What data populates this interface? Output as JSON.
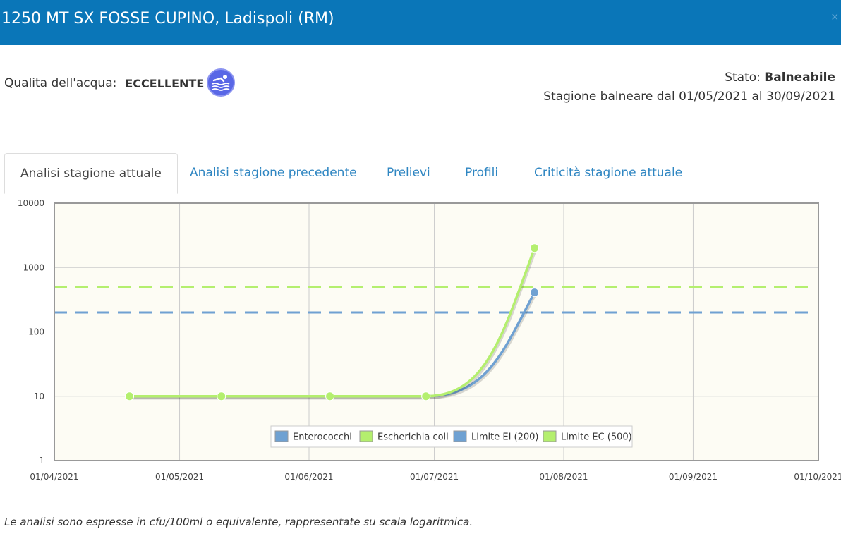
{
  "header": {
    "title": "1250 MT SX FOSSE CUPINO, Ladispoli (RM)",
    "close_label": "×"
  },
  "quality": {
    "label": "Qualita dell'acqua:",
    "value": "ECCELLENTE",
    "icon": "swimmer-icon",
    "icon_color": "#5967e6"
  },
  "status": {
    "label": "Stato:",
    "value": "Balneabile",
    "season": "Stagione balneare dal 01/05/2021 al 30/09/2021"
  },
  "tabs": [
    {
      "label": "Analisi stagione attuale",
      "active": true
    },
    {
      "label": "Analisi stagione precedente",
      "active": false
    },
    {
      "label": "Prelievi",
      "active": false
    },
    {
      "label": "Profili",
      "active": false
    },
    {
      "label": "Criticità stagione attuale",
      "active": false
    }
  ],
  "chart_data": {
    "type": "line",
    "yscale": "log",
    "ylim": [
      1,
      10000
    ],
    "yticks": [
      "1",
      "10",
      "100",
      "1000",
      "10000"
    ],
    "xticks": [
      "01/04/2021",
      "01/05/2021",
      "01/06/2021",
      "01/07/2021",
      "01/08/2021",
      "01/09/2021",
      "01/10/2021"
    ],
    "series": [
      {
        "name": "Enterococchi",
        "color": "#6fa1d2",
        "points": [
          [
            "2021-04-19",
            10
          ],
          [
            "2021-05-11",
            10
          ],
          [
            "2021-06-06",
            10
          ],
          [
            "2021-06-29",
            10
          ],
          [
            "2021-07-25",
            410
          ]
        ]
      },
      {
        "name": "Escherichia coli",
        "color": "#b4ef6e",
        "points": [
          [
            "2021-04-19",
            10
          ],
          [
            "2021-05-11",
            10
          ],
          [
            "2021-06-06",
            10
          ],
          [
            "2021-06-29",
            10
          ],
          [
            "2021-07-25",
            2000
          ]
        ]
      },
      {
        "name": "Limite EI (200)",
        "color": "#6fa1d2",
        "limit": 200
      },
      {
        "name": "Limite EC (500)",
        "color": "#b4ef6e",
        "limit": 500
      }
    ]
  },
  "note": "Le analisi sono espresse in cfu/100ml o equivalente, rappresentate su scala logaritmica."
}
